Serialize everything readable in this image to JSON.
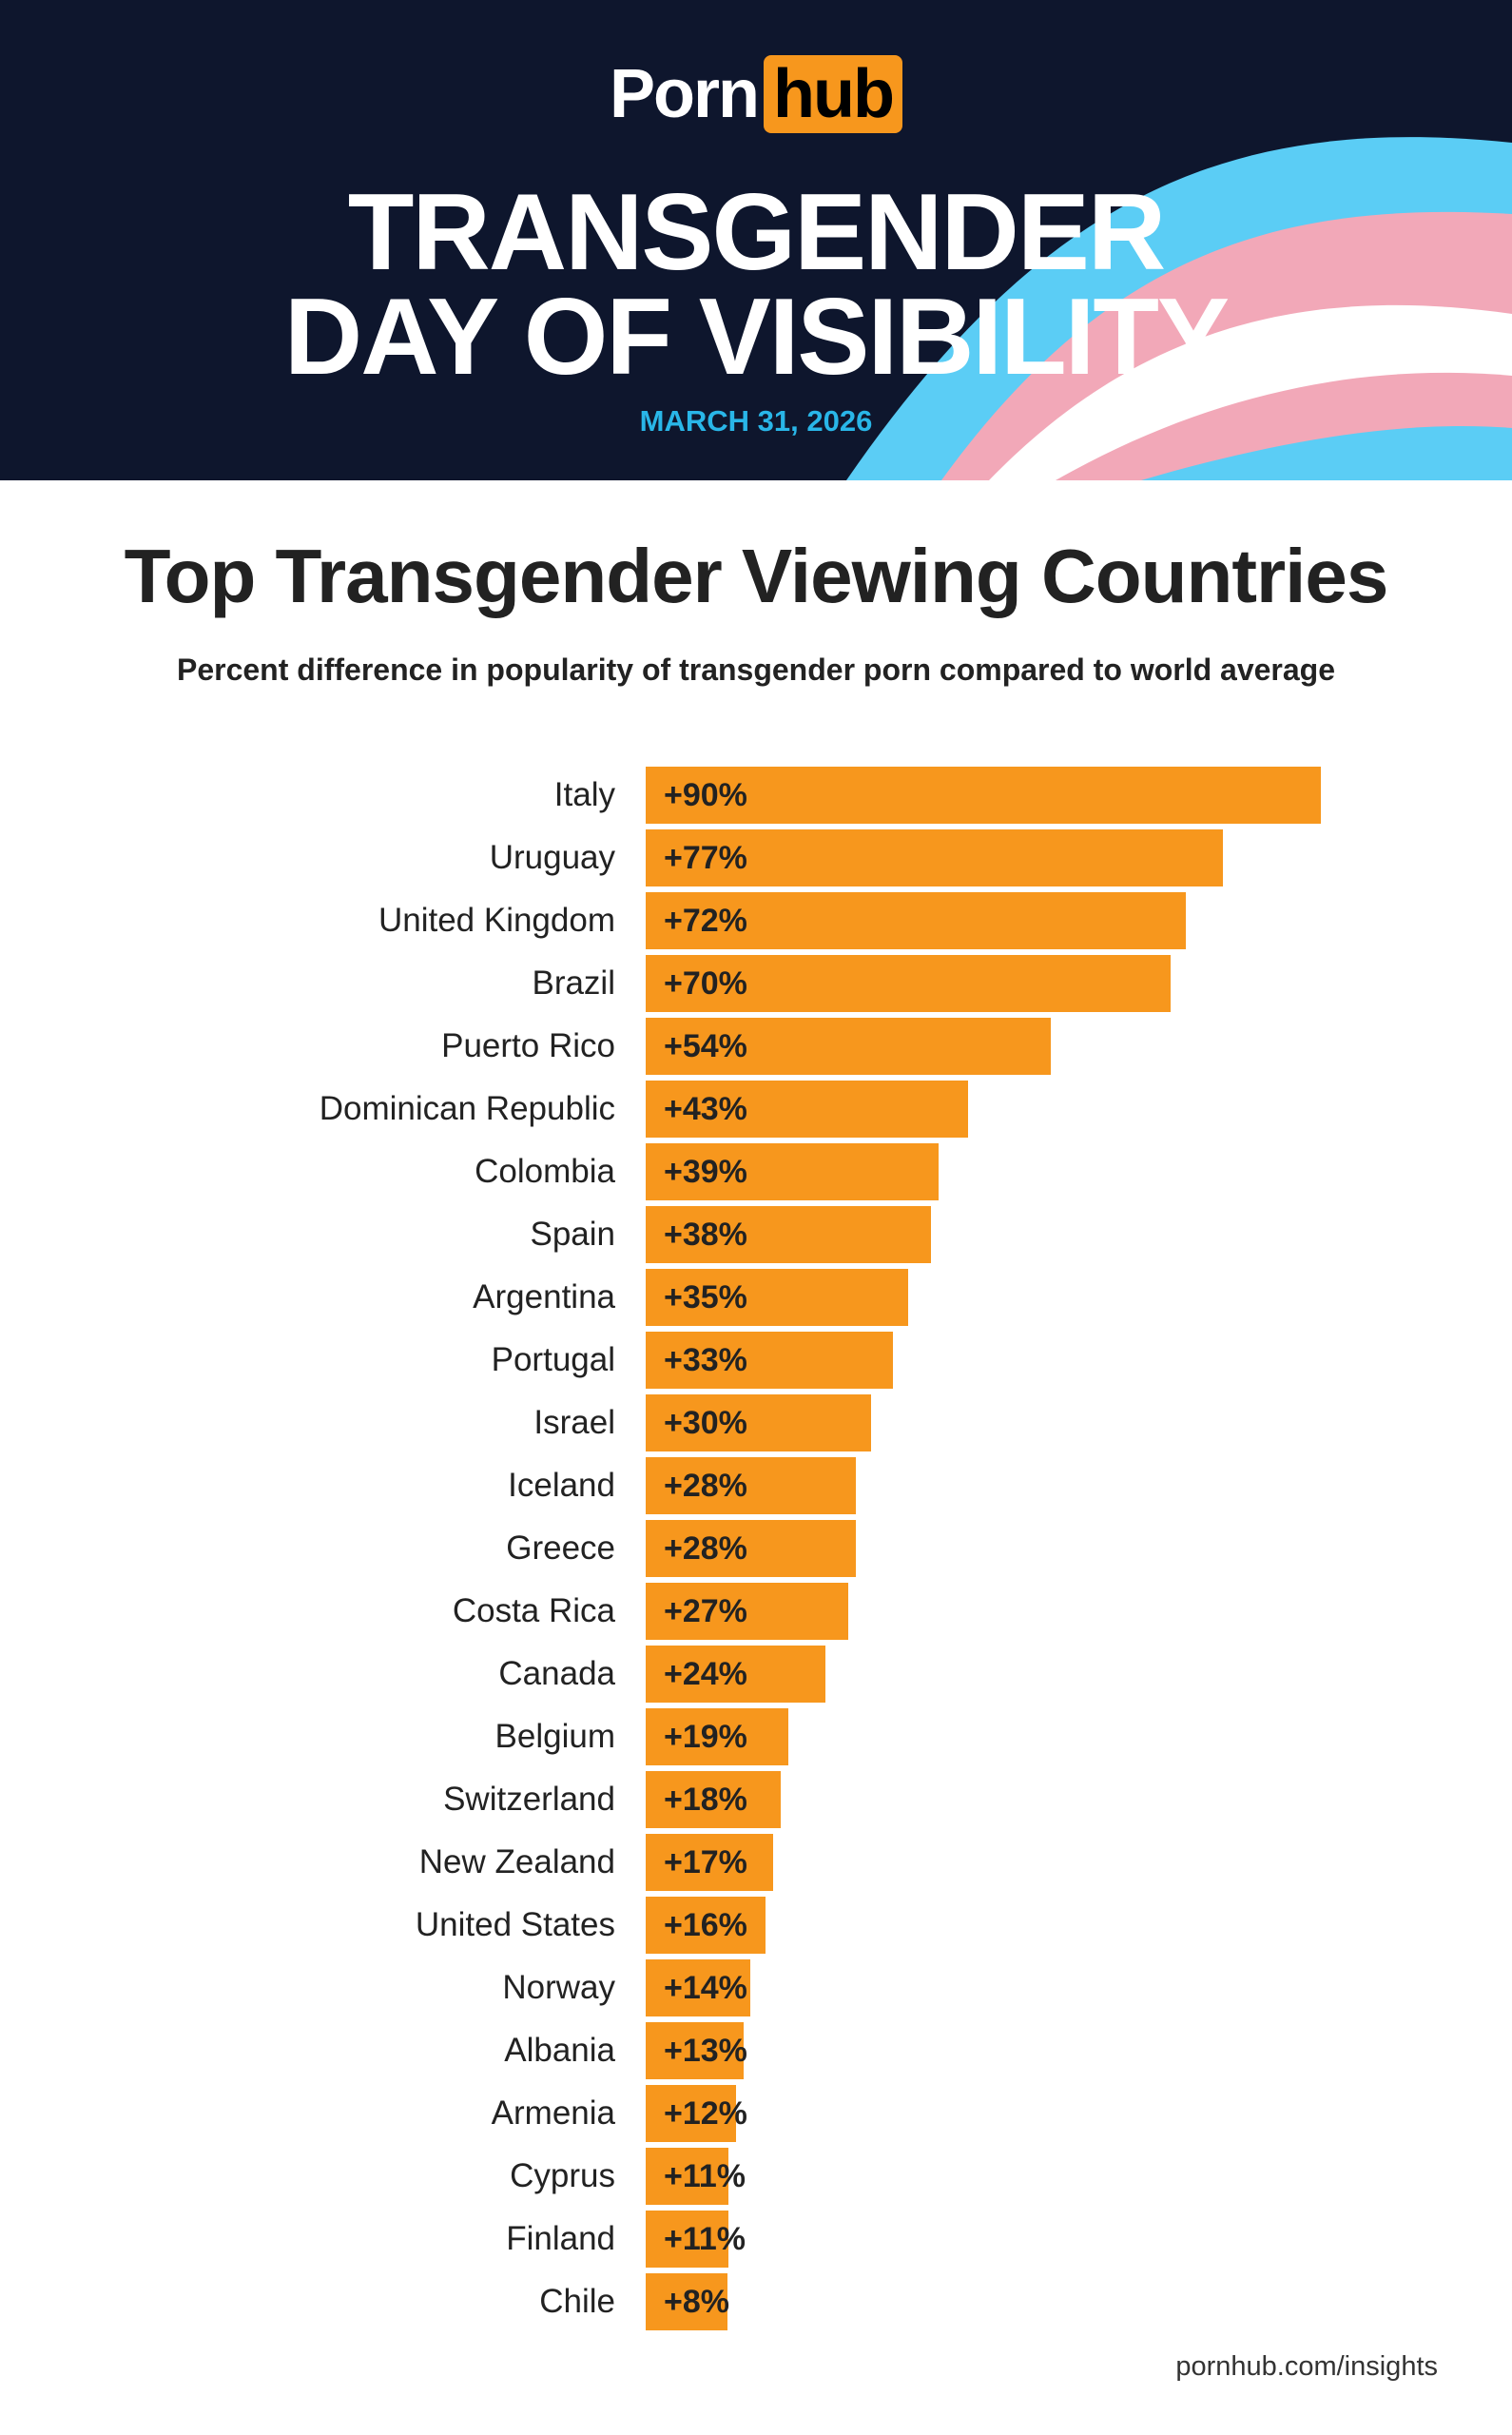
{
  "header": {
    "logo_text": "Pornhub",
    "logo_part1": "Porn",
    "logo_part2": "hub",
    "title_line1": "TRANSGENDER",
    "title_line2": "DAY OF VISIBILITY",
    "date": "MARCH 31, 2026"
  },
  "colors": {
    "bar": "#f7971d",
    "header_bg": "#0e162d",
    "flag_blue": "#5bcdf5",
    "flag_pink": "#f2a8b8",
    "flag_white": "#ffffff"
  },
  "chart_data": {
    "type": "bar",
    "orientation": "horizontal",
    "title": "Top Transgender Viewing Countries",
    "subtitle": "Percent difference in popularity of transgender porn compared to world average",
    "categories": [
      "Italy",
      "Uruguay",
      "United Kingdom",
      "Brazil",
      "Puerto Rico",
      "Dominican Republic",
      "Colombia",
      "Spain",
      "Argentina",
      "Portugal",
      "Israel",
      "Iceland",
      "Greece",
      "Costa Rica",
      "Canada",
      "Belgium",
      "Switzerland",
      "New Zealand",
      "United States",
      "Norway",
      "Albania",
      "Armenia",
      "Cyprus",
      "Finland",
      "Chile"
    ],
    "values": [
      90,
      77,
      72,
      70,
      54,
      43,
      39,
      38,
      35,
      33,
      30,
      28,
      28,
      27,
      24,
      19,
      18,
      17,
      16,
      14,
      13,
      12,
      11,
      11,
      8
    ],
    "labels": [
      "+90%",
      "+77%",
      "+72%",
      "+70%",
      "+54%",
      "+43%",
      "+39%",
      "+38%",
      "+35%",
      "+33%",
      "+30%",
      "+28%",
      "+28%",
      "+27%",
      "+24%",
      "+19%",
      "+18%",
      "+17%",
      "+16%",
      "+14%",
      "+13%",
      "+12%",
      "+11%",
      "+11%",
      "+8%"
    ],
    "xlabel": "",
    "ylabel": "",
    "xlim": [
      0,
      90
    ],
    "grid": false
  },
  "footer": {
    "source": "pornhub.com/insights"
  }
}
